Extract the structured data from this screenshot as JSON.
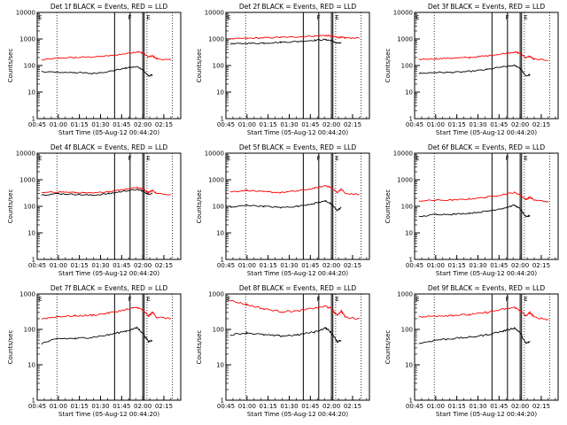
{
  "colors": {
    "events": "#000000",
    "lld": "#ff0000",
    "axis": "#000000",
    "background": "#ffffff"
  },
  "chart_data": [
    {
      "type": "line",
      "title": "Det 1f BLACK = Events, RED = LLD",
      "xlabel": "Start Time (05-Aug-12 00:44:20)",
      "ylabel": "Counts/sec",
      "x_ticks": [
        "00:45",
        "01:00",
        "01:15",
        "01:30",
        "01:45",
        "02:00",
        "02:15"
      ],
      "y_ticks": [
        "1",
        "10",
        "100",
        "1000",
        "10000"
      ],
      "y_scale": "log",
      "ylim": [
        1,
        10000
      ],
      "xlim_min": [
        45,
        147
      ],
      "flags": [
        {
          "label": "F",
          "at_min": 109
        },
        {
          "label": "E",
          "at_min": 122
        }
      ],
      "dotted_lines_min": [
        59,
        123,
        141
      ],
      "solid_lines_min": [
        100,
        111,
        120,
        121
      ],
      "x_min": [
        48,
        60,
        72,
        84,
        96,
        108,
        116,
        120,
        124,
        127,
        130,
        140
      ],
      "series": [
        {
          "name": "LLD",
          "values": [
            160,
            190,
            200,
            210,
            230,
            280,
            330,
            300,
            210,
            230,
            180,
            160
          ]
        },
        {
          "name": "Events",
          "values": [
            60,
            55,
            55,
            50,
            60,
            80,
            90,
            70,
            40,
            45,
            null,
            null
          ]
        }
      ]
    },
    {
      "type": "line",
      "title": "Det 2f BLACK = Events, RED = LLD",
      "xlabel": "Start Time (05-Aug-12 00:44:20)",
      "ylabel": "Counts/sec",
      "x_ticks": [
        "00:45",
        "01:00",
        "01:15",
        "01:30",
        "01:45",
        "02:00",
        "02:15"
      ],
      "y_ticks": [
        "1",
        "10",
        "100",
        "1000",
        "10000"
      ],
      "y_scale": "log",
      "ylim": [
        1,
        10000
      ],
      "xlim_min": [
        45,
        147
      ],
      "flags": [
        {
          "label": "F",
          "at_min": 109
        },
        {
          "label": "E",
          "at_min": 122
        }
      ],
      "dotted_lines_min": [
        59,
        123,
        141
      ],
      "solid_lines_min": [
        100,
        111,
        120,
        121
      ],
      "x_min": [
        48,
        60,
        72,
        84,
        96,
        108,
        116,
        120,
        124,
        127,
        130,
        140
      ],
      "series": [
        {
          "name": "LLD",
          "values": [
            1000,
            1050,
            1100,
            1150,
            1200,
            1300,
            1350,
            1300,
            1150,
            1150,
            1100,
            1100
          ]
        },
        {
          "name": "Events",
          "values": [
            650,
            680,
            700,
            750,
            800,
            900,
            950,
            850,
            700,
            700,
            null,
            null
          ]
        }
      ]
    },
    {
      "type": "line",
      "title": "Det 3f BLACK = Events, RED = LLD",
      "xlabel": "Start Time (05-Aug-12 00:44:20)",
      "ylabel": "Counts/sec",
      "x_ticks": [
        "00:45",
        "01:00",
        "01:15",
        "01:30",
        "01:45",
        "02:00",
        "02:15"
      ],
      "y_ticks": [
        "1",
        "10",
        "100",
        "1000",
        "10000"
      ],
      "y_scale": "log",
      "ylim": [
        1,
        10000
      ],
      "xlim_min": [
        45,
        147
      ],
      "flags": [
        {
          "label": "F",
          "at_min": 109
        },
        {
          "label": "E",
          "at_min": 122
        }
      ],
      "dotted_lines_min": [
        59,
        123,
        141
      ],
      "solid_lines_min": [
        100,
        111,
        120,
        121
      ],
      "x_min": [
        48,
        60,
        72,
        84,
        96,
        108,
        116,
        120,
        124,
        127,
        130,
        140
      ],
      "series": [
        {
          "name": "LLD",
          "values": [
            170,
            180,
            190,
            200,
            230,
            280,
            320,
            290,
            200,
            220,
            170,
            160
          ]
        },
        {
          "name": "Events",
          "values": [
            50,
            55,
            55,
            60,
            70,
            90,
            100,
            80,
            40,
            45,
            null,
            null
          ]
        }
      ]
    },
    {
      "type": "line",
      "title": "Det 4f BLACK = Events, RED = LLD",
      "xlabel": "Start Time (05-Aug-12 00:44:20)",
      "ylabel": "Counts/sec",
      "x_ticks": [
        "00:45",
        "01:00",
        "01:15",
        "01:30",
        "01:45",
        "02:00",
        "02:15"
      ],
      "y_ticks": [
        "1",
        "10",
        "100",
        "1000",
        "10000"
      ],
      "y_scale": "log",
      "ylim": [
        1,
        10000
      ],
      "xlim_min": [
        45,
        147
      ],
      "flags": [
        {
          "label": "F",
          "at_min": 109
        },
        {
          "label": "E",
          "at_min": 122
        }
      ],
      "dotted_lines_min": [
        59,
        123,
        141
      ],
      "solid_lines_min": [
        100,
        111,
        120,
        121
      ],
      "x_min": [
        48,
        60,
        72,
        84,
        96,
        108,
        116,
        120,
        124,
        127,
        130,
        140
      ],
      "series": [
        {
          "name": "LLD",
          "values": [
            320,
            350,
            330,
            310,
            360,
            450,
            520,
            450,
            330,
            400,
            300,
            280
          ]
        },
        {
          "name": "Events",
          "values": [
            270,
            300,
            280,
            260,
            300,
            380,
            430,
            380,
            280,
            320,
            null,
            null
          ]
        }
      ]
    },
    {
      "type": "line",
      "title": "Det 5f BLACK = Events, RED = LLD",
      "xlabel": "Start Time (05-Aug-12 00:44:20)",
      "ylabel": "Counts/sec",
      "x_ticks": [
        "00:45",
        "01:00",
        "01:15",
        "01:30",
        "01:45",
        "02:00",
        "02:15"
      ],
      "y_ticks": [
        "1",
        "10",
        "100",
        "1000",
        "10000"
      ],
      "y_scale": "log",
      "ylim": [
        1,
        10000
      ],
      "xlim_min": [
        45,
        147
      ],
      "flags": [
        {
          "label": "F",
          "at_min": 109
        },
        {
          "label": "E",
          "at_min": 122
        }
      ],
      "dotted_lines_min": [
        59,
        123,
        141
      ],
      "solid_lines_min": [
        100,
        111,
        120,
        121
      ],
      "x_min": [
        48,
        60,
        72,
        84,
        96,
        108,
        116,
        120,
        124,
        127,
        130,
        140
      ],
      "series": [
        {
          "name": "LLD",
          "values": [
            350,
            400,
            350,
            330,
            380,
            480,
            600,
            500,
            330,
            450,
            300,
            280
          ]
        },
        {
          "name": "Events",
          "values": [
            90,
            110,
            100,
            90,
            100,
            130,
            160,
            120,
            70,
            90,
            null,
            null
          ]
        }
      ]
    },
    {
      "type": "line",
      "title": "Det 6f BLACK = Events, RED = LLD",
      "xlabel": "Start Time (05-Aug-12 00:44:20)",
      "ylabel": "Counts/sec",
      "x_ticks": [
        "00:45",
        "01:00",
        "01:15",
        "01:30",
        "01:45",
        "02:00",
        "02:15"
      ],
      "y_ticks": [
        "1",
        "10",
        "100",
        "1000",
        "10000"
      ],
      "y_scale": "log",
      "ylim": [
        1,
        10000
      ],
      "xlim_min": [
        45,
        147
      ],
      "flags": [
        {
          "label": "F",
          "at_min": 109
        },
        {
          "label": "E",
          "at_min": 122
        }
      ],
      "dotted_lines_min": [
        59,
        123,
        141
      ],
      "solid_lines_min": [
        100,
        111,
        120,
        121
      ],
      "x_min": [
        48,
        60,
        72,
        84,
        96,
        108,
        116,
        120,
        124,
        127,
        130,
        140
      ],
      "series": [
        {
          "name": "LLD",
          "values": [
            160,
            170,
            170,
            190,
            220,
            280,
            330,
            270,
            180,
            220,
            170,
            150
          ]
        },
        {
          "name": "Events",
          "values": [
            40,
            50,
            50,
            55,
            65,
            85,
            110,
            80,
            40,
            45,
            null,
            null
          ]
        }
      ]
    },
    {
      "type": "line",
      "title": "Det 7f BLACK = Events, RED = LLD",
      "xlabel": "Start Time (05-Aug-12 00:44:20)",
      "ylabel": "Counts/sec",
      "x_ticks": [
        "00:45",
        "01:00",
        "01:15",
        "01:30",
        "01:45",
        "02:00",
        "02:15"
      ],
      "y_ticks": [
        "1",
        "10",
        "100",
        "1000"
      ],
      "y_scale": "log",
      "ylim": [
        1,
        1000
      ],
      "xlim_min": [
        45,
        147
      ],
      "flags": [
        {
          "label": "F",
          "at_min": 109
        },
        {
          "label": "E",
          "at_min": 122
        }
      ],
      "dotted_lines_min": [
        59,
        123,
        141
      ],
      "solid_lines_min": [
        100,
        111,
        120,
        121
      ],
      "x_min": [
        48,
        60,
        72,
        84,
        96,
        108,
        116,
        120,
        124,
        127,
        130,
        140
      ],
      "series": [
        {
          "name": "LLD",
          "values": [
            200,
            230,
            240,
            250,
            290,
            360,
            420,
            350,
            240,
            300,
            220,
            200
          ]
        },
        {
          "name": "Events",
          "values": [
            40,
            55,
            55,
            60,
            70,
            90,
            110,
            80,
            45,
            50,
            null,
            null
          ]
        }
      ]
    },
    {
      "type": "line",
      "title": "Det 8f BLACK = Events, RED = LLD",
      "xlabel": "Start Time (05-Aug-12 00:44:20)",
      "ylabel": "Counts/sec",
      "x_ticks": [
        "00:45",
        "01:00",
        "01:15",
        "01:30",
        "01:45",
        "02:00",
        "02:15"
      ],
      "y_ticks": [
        "1",
        "10",
        "100",
        "1000"
      ],
      "y_scale": "log",
      "ylim": [
        1,
        1000
      ],
      "xlim_min": [
        45,
        147
      ],
      "flags": [
        {
          "label": "F",
          "at_min": 109
        },
        {
          "label": "E",
          "at_min": 122
        }
      ],
      "dotted_lines_min": [
        59,
        123,
        141
      ],
      "solid_lines_min": [
        100,
        111,
        120,
        121
      ],
      "x_min": [
        48,
        60,
        72,
        84,
        96,
        108,
        116,
        120,
        124,
        127,
        130,
        140
      ],
      "series": [
        {
          "name": "LLD",
          "values": [
            650,
            500,
            380,
            320,
            330,
            400,
            450,
            380,
            250,
            330,
            220,
            200
          ]
        },
        {
          "name": "Events",
          "values": [
            70,
            80,
            70,
            65,
            70,
            85,
            110,
            80,
            45,
            50,
            null,
            null
          ]
        }
      ]
    },
    {
      "type": "line",
      "title": "Det 9f BLACK = Events, RED = LLD",
      "xlabel": "Start Time (05-Aug-12 00:44:20)",
      "ylabel": "Counts/sec",
      "x_ticks": [
        "00:45",
        "01:00",
        "01:15",
        "01:30",
        "01:45",
        "02:00",
        "02:15"
      ],
      "y_ticks": [
        "1",
        "10",
        "100",
        "1000"
      ],
      "y_scale": "log",
      "ylim": [
        1,
        1000
      ],
      "xlim_min": [
        45,
        147
      ],
      "flags": [
        {
          "label": "F",
          "at_min": 109
        },
        {
          "label": "E",
          "at_min": 122
        }
      ],
      "dotted_lines_min": [
        59,
        123,
        141
      ],
      "solid_lines_min": [
        100,
        111,
        120,
        121
      ],
      "x_min": [
        48,
        60,
        72,
        84,
        96,
        108,
        116,
        120,
        124,
        127,
        130,
        140
      ],
      "series": [
        {
          "name": "LLD",
          "values": [
            220,
            240,
            250,
            260,
            300,
            370,
            420,
            340,
            240,
            300,
            220,
            190
          ]
        },
        {
          "name": "Events",
          "values": [
            40,
            50,
            55,
            60,
            70,
            90,
            110,
            80,
            40,
            45,
            null,
            null
          ]
        }
      ]
    }
  ]
}
